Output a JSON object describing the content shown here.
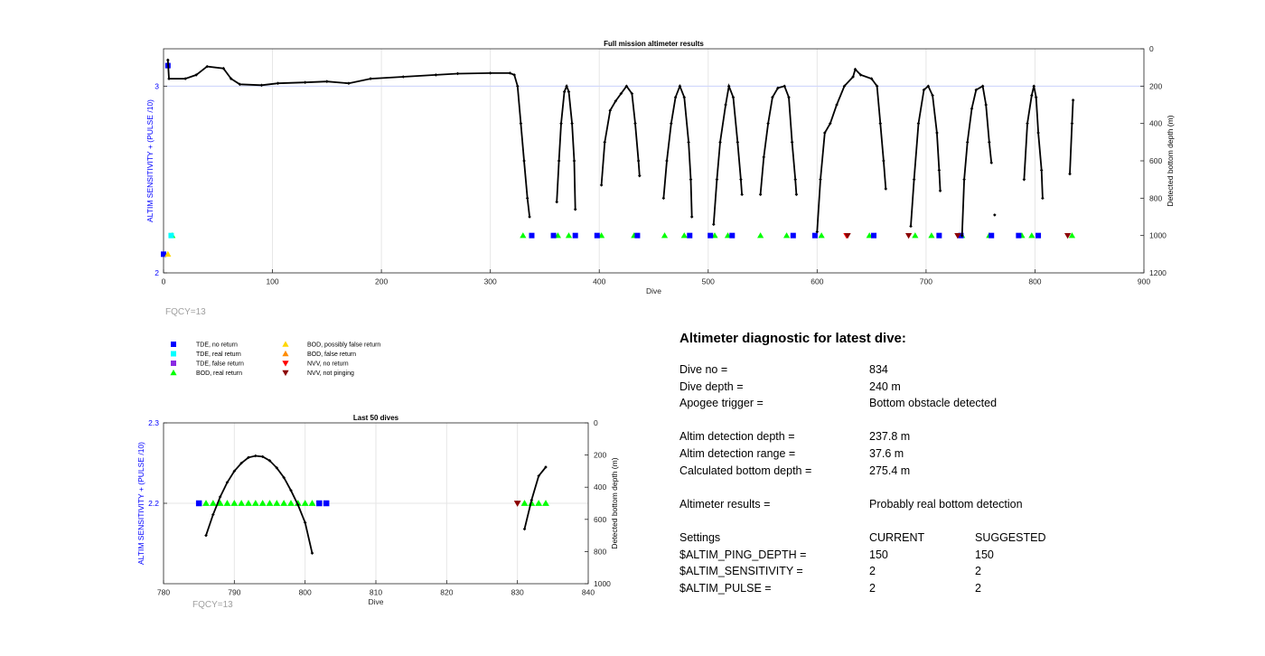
{
  "figure": {
    "fqcy_label": "FQCY=13",
    "legend": [
      {
        "label": "TDE, no return",
        "marker": "square",
        "color": "#0000ff"
      },
      {
        "label": "TDE, real return",
        "marker": "square",
        "color": "#00ffff"
      },
      {
        "label": "TDE, false return",
        "marker": "square",
        "color": "#8a2be2"
      },
      {
        "label": "BOD, real return",
        "marker": "triangle-up",
        "color": "#00ff00"
      },
      {
        "label": "BOD, possibly false return",
        "marker": "triangle-up",
        "color": "#ffd700"
      },
      {
        "label": "BOD, false return",
        "marker": "triangle-up",
        "color": "#ff8c00"
      },
      {
        "label": "NVV, no return",
        "marker": "triangle-down",
        "color": "#ff0000"
      },
      {
        "label": "NVV, not pinging",
        "marker": "triangle-down",
        "color": "#8b0000"
      }
    ]
  },
  "chart_data": [
    {
      "type": "scatter",
      "title": "Full mission altimeter results",
      "xlabel": "Dive",
      "ylabel": "ALTIM SENSITIVITY + (PULSE /10)",
      "y2label": "Detected bottom depth (m)",
      "xlim": [
        0,
        900
      ],
      "ylim": [
        2,
        3.2
      ],
      "y2lim": [
        1200,
        0
      ],
      "xticks": [
        "0",
        "100",
        "200",
        "300",
        "400",
        "500",
        "600",
        "700",
        "800",
        "900"
      ],
      "yticks": [
        "2",
        "3"
      ],
      "y2ticks": [
        "0",
        "200",
        "400",
        "600",
        "800",
        "1000",
        "1200"
      ],
      "grid": true,
      "reference_line_y": 3,
      "settings_markers": {
        "BOD, real return": [
          [
            8,
            2.2
          ],
          [
            330,
            2.2
          ],
          [
            362,
            2.2
          ],
          [
            372,
            2.2
          ],
          [
            402,
            2.2
          ],
          [
            432,
            2.2
          ],
          [
            460,
            2.2
          ],
          [
            478,
            2.2
          ],
          [
            506,
            2.2
          ],
          [
            518,
            2.2
          ],
          [
            548,
            2.2
          ],
          [
            572,
            2.2
          ],
          [
            604,
            2.2
          ],
          [
            648,
            2.2
          ],
          [
            690,
            2.2
          ],
          [
            705,
            2.2
          ],
          [
            733,
            2.2
          ],
          [
            758,
            2.2
          ],
          [
            788,
            2.2
          ],
          [
            797,
            2.2
          ],
          [
            834,
            2.2
          ]
        ],
        "TDE, real return": [
          [
            7,
            2.2
          ]
        ],
        "TDE, no return": [
          [
            0,
            2.1
          ],
          [
            4,
            3.11
          ],
          [
            338,
            2.2
          ],
          [
            358,
            2.2
          ],
          [
            378,
            2.2
          ],
          [
            398,
            2.2
          ],
          [
            435,
            2.2
          ],
          [
            483,
            2.2
          ],
          [
            502,
            2.2
          ],
          [
            522,
            2.2
          ],
          [
            578,
            2.2
          ],
          [
            598,
            2.2
          ],
          [
            652,
            2.2
          ],
          [
            712,
            2.2
          ],
          [
            732,
            2.2
          ],
          [
            760,
            2.2
          ],
          [
            785,
            2.2
          ],
          [
            803,
            2.2
          ]
        ],
        "BOD, possibly false return": [
          [
            4,
            2.1
          ]
        ],
        "NVV, no return": [
          [
            627,
            2.2
          ]
        ],
        "NVV, not pinging": [
          [
            628,
            2.2
          ],
          [
            684,
            2.2
          ],
          [
            729,
            2.2
          ],
          [
            830,
            2.2
          ]
        ]
      },
      "bottom_depth_segments": [
        [
          [
            4,
            60
          ],
          [
            5,
            160
          ],
          [
            20,
            160
          ],
          [
            30,
            140
          ],
          [
            40,
            95
          ],
          [
            55,
            105
          ],
          [
            62,
            160
          ],
          [
            70,
            190
          ],
          [
            90,
            195
          ],
          [
            105,
            185
          ],
          [
            130,
            180
          ],
          [
            150,
            175
          ],
          [
            170,
            185
          ],
          [
            190,
            160
          ],
          [
            220,
            150
          ],
          [
            250,
            140
          ],
          [
            270,
            133
          ],
          [
            300,
            130
          ],
          [
            318,
            130
          ],
          [
            322,
            140
          ],
          [
            325,
            200
          ],
          [
            328,
            400
          ],
          [
            331,
            600
          ],
          [
            334,
            800
          ],
          [
            336,
            900
          ]
        ],
        [
          [
            361,
            820
          ],
          [
            363,
            600
          ],
          [
            365,
            400
          ],
          [
            368,
            230
          ],
          [
            370,
            200
          ],
          [
            372,
            230
          ],
          [
            375,
            400
          ],
          [
            377,
            600
          ],
          [
            378,
            860
          ]
        ],
        [
          [
            402,
            730
          ],
          [
            405,
            500
          ],
          [
            410,
            330
          ],
          [
            415,
            280
          ],
          [
            420,
            240
          ],
          [
            425,
            200
          ],
          [
            430,
            240
          ],
          [
            433,
            400
          ],
          [
            436,
            600
          ],
          [
            437,
            680
          ]
        ],
        [
          [
            459,
            800
          ],
          [
            462,
            600
          ],
          [
            466,
            400
          ],
          [
            470,
            260
          ],
          [
            474,
            200
          ],
          [
            478,
            260
          ],
          [
            482,
            500
          ],
          [
            484,
            700
          ],
          [
            485,
            900
          ]
        ],
        [
          [
            505,
            940
          ],
          [
            508,
            700
          ],
          [
            511,
            500
          ],
          [
            516,
            300
          ],
          [
            519,
            200
          ],
          [
            523,
            260
          ],
          [
            527,
            500
          ],
          [
            530,
            700
          ],
          [
            531,
            780
          ]
        ],
        [
          [
            548,
            780
          ],
          [
            551,
            580
          ],
          [
            555,
            400
          ],
          [
            559,
            260
          ],
          [
            564,
            210
          ],
          [
            570,
            200
          ],
          [
            574,
            260
          ],
          [
            577,
            500
          ],
          [
            580,
            700
          ],
          [
            581,
            780
          ]
        ],
        [
          [
            600,
            980
          ],
          [
            603,
            700
          ],
          [
            607,
            450
          ],
          [
            612,
            400
          ],
          [
            618,
            300
          ],
          [
            625,
            200
          ],
          [
            633,
            150
          ],
          [
            635,
            110
          ],
          [
            640,
            140
          ],
          [
            650,
            160
          ],
          [
            655,
            200
          ],
          [
            658,
            400
          ],
          [
            661,
            600
          ],
          [
            663,
            750
          ]
        ],
        [
          [
            686,
            950
          ],
          [
            689,
            700
          ],
          [
            693,
            400
          ],
          [
            698,
            220
          ],
          [
            702,
            200
          ],
          [
            706,
            250
          ],
          [
            710,
            450
          ],
          [
            712,
            650
          ],
          [
            713,
            760
          ]
        ],
        [
          [
            733,
            1000
          ],
          [
            735,
            700
          ],
          [
            738,
            500
          ],
          [
            742,
            320
          ],
          [
            746,
            220
          ],
          [
            752,
            200
          ],
          [
            755,
            300
          ],
          [
            758,
            500
          ],
          [
            760,
            610
          ]
        ],
        [
          [
            763,
            890
          ]
        ],
        [
          [
            790,
            700
          ],
          [
            793,
            400
          ],
          [
            797,
            250
          ],
          [
            799,
            200
          ],
          [
            801,
            260
          ],
          [
            803,
            450
          ],
          [
            806,
            650
          ],
          [
            807,
            800
          ]
        ],
        [
          [
            832,
            670
          ],
          [
            834,
            400
          ],
          [
            835,
            275
          ]
        ]
      ]
    },
    {
      "type": "scatter",
      "title": "Last 50 dives",
      "xlabel": "Dive",
      "ylabel": "ALTIM SENSITIVITY + (PULSE /10)",
      "y2label": "Detected bottom depth (m)",
      "xlim": [
        780,
        840
      ],
      "ylim": [
        2.1,
        2.3
      ],
      "y2lim": [
        1000,
        0
      ],
      "xticks": [
        "780",
        "790",
        "800",
        "810",
        "820",
        "830",
        "840"
      ],
      "yticks": [
        "2.2",
        "2.3"
      ],
      "y2ticks": [
        "0",
        "200",
        "400",
        "600",
        "800",
        "1000"
      ],
      "grid": true,
      "settings_markers": {
        "TDE, no return": [
          [
            785,
            2.2
          ],
          [
            802,
            2.2
          ],
          [
            803,
            2.2
          ]
        ],
        "BOD, real return": [
          [
            786,
            2.2
          ],
          [
            787,
            2.2
          ],
          [
            788,
            2.2
          ],
          [
            789,
            2.2
          ],
          [
            790,
            2.2
          ],
          [
            791,
            2.2
          ],
          [
            792,
            2.2
          ],
          [
            793,
            2.2
          ],
          [
            794,
            2.2
          ],
          [
            795,
            2.2
          ],
          [
            796,
            2.2
          ],
          [
            797,
            2.2
          ],
          [
            798,
            2.2
          ],
          [
            799,
            2.2
          ],
          [
            800,
            2.2
          ],
          [
            801,
            2.2
          ],
          [
            831,
            2.2
          ],
          [
            832,
            2.2
          ],
          [
            833,
            2.2
          ],
          [
            834,
            2.2
          ]
        ],
        "NVV, not pinging": [
          [
            830,
            2.2
          ]
        ]
      },
      "bottom_depth_segments": [
        [
          [
            786,
            700
          ],
          [
            787,
            570
          ],
          [
            788,
            460
          ],
          [
            789,
            370
          ],
          [
            790,
            300
          ],
          [
            791,
            250
          ],
          [
            792,
            215
          ],
          [
            793,
            205
          ],
          [
            794,
            210
          ],
          [
            795,
            235
          ],
          [
            796,
            280
          ],
          [
            797,
            340
          ],
          [
            798,
            420
          ],
          [
            799,
            510
          ],
          [
            800,
            620
          ],
          [
            801,
            810
          ]
        ],
        [
          [
            831,
            660
          ],
          [
            832,
            480
          ],
          [
            833,
            330
          ],
          [
            834,
            275
          ]
        ]
      ]
    }
  ],
  "diagnostic": {
    "title": "Altimeter diagnostic for latest dive:",
    "rows": [
      {
        "label": "Dive no =",
        "value": "834"
      },
      {
        "label": "Dive depth =",
        "value": "240 m"
      },
      {
        "label": "Apogee trigger =",
        "value": "Bottom obstacle detected"
      },
      {
        "label": "Altim detection depth =",
        "value": "237.8 m"
      },
      {
        "label": "Altim detection range =",
        "value": "37.6 m"
      },
      {
        "label": "Calculated bottom depth =",
        "value": "275.4 m"
      },
      {
        "label": "Altimeter results =",
        "value": "Probably real bottom detection"
      }
    ],
    "settings_header": {
      "label": "Settings",
      "current": "CURRENT",
      "suggested": "SUGGESTED"
    },
    "settings": [
      {
        "label": "$ALTIM_PING_DEPTH =",
        "current": "150",
        "suggested": "150"
      },
      {
        "label": "$ALTIM_SENSITIVITY =",
        "current": "2",
        "suggested": "2"
      },
      {
        "label": "$ALTIM_PULSE =",
        "current": "2",
        "suggested": "2"
      }
    ]
  }
}
